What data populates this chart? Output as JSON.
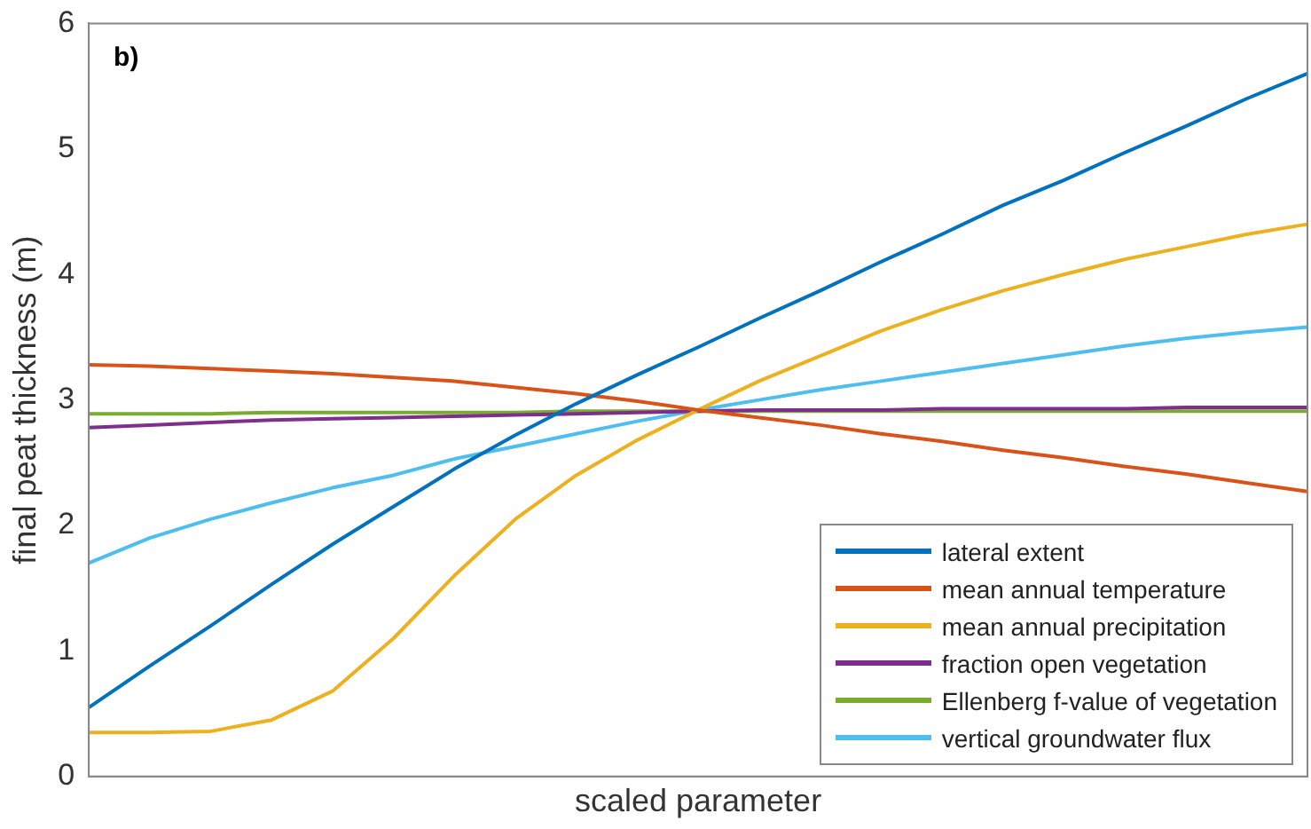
{
  "chart_data": {
    "type": "line",
    "xlabel": "scaled parameter",
    "ylabel": "final peat thickness (m)",
    "annotations": [
      "b)"
    ],
    "categories": [
      null,
      null,
      null,
      null,
      null,
      null,
      null,
      null,
      null,
      null,
      null,
      null,
      null,
      null,
      null,
      null,
      null,
      null,
      null,
      null,
      null
    ],
    "ylim": [
      0,
      6
    ],
    "yticks": [
      0,
      1,
      2,
      3,
      4,
      5,
      6
    ],
    "grid": false,
    "legend": "bottom right",
    "marker": "none",
    "line_style": "solid",
    "series": [
      {
        "name": "lateral extent",
        "color": "#0072bd",
        "values": [
          0.55,
          0.88,
          1.2,
          1.53,
          1.85,
          2.15,
          2.45,
          2.72,
          2.97,
          3.2,
          3.42,
          3.65,
          3.87,
          4.1,
          4.32,
          4.55,
          4.75,
          4.97,
          5.18,
          5.4,
          5.6
        ]
      },
      {
        "name": "mean annual temperature",
        "color": "#d95319",
        "values": [
          3.28,
          3.27,
          3.25,
          3.23,
          3.21,
          3.18,
          3.15,
          3.1,
          3.05,
          2.99,
          2.92,
          2.86,
          2.8,
          2.73,
          2.67,
          2.6,
          2.54,
          2.47,
          2.41,
          2.34,
          2.27
        ]
      },
      {
        "name": "mean annual precipitation",
        "color": "#edb120",
        "values": [
          0.35,
          0.35,
          0.36,
          0.45,
          0.68,
          1.1,
          1.6,
          2.05,
          2.4,
          2.68,
          2.92,
          3.15,
          3.35,
          3.55,
          3.72,
          3.87,
          4.0,
          4.12,
          4.22,
          4.32,
          4.4
        ]
      },
      {
        "name": "fraction open vegetation",
        "color": "#7e2f8e",
        "values": [
          2.78,
          2.8,
          2.82,
          2.84,
          2.85,
          2.86,
          2.87,
          2.88,
          2.89,
          2.9,
          2.91,
          2.92,
          2.92,
          2.92,
          2.93,
          2.93,
          2.93,
          2.93,
          2.94,
          2.94,
          2.94
        ]
      },
      {
        "name": "Ellenberg f-value of vegetation",
        "color": "#77ac30",
        "values": [
          2.89,
          2.89,
          2.89,
          2.9,
          2.9,
          2.9,
          2.9,
          2.9,
          2.91,
          2.91,
          2.91,
          2.91,
          2.91,
          2.91,
          2.91,
          2.91,
          2.91,
          2.91,
          2.91,
          2.91,
          2.91
        ]
      },
      {
        "name": "vertical groundwater flux",
        "color": "#4dbeee",
        "values": [
          1.7,
          1.9,
          2.05,
          2.18,
          2.3,
          2.4,
          2.53,
          2.63,
          2.73,
          2.83,
          2.92,
          3.0,
          3.08,
          3.15,
          3.22,
          3.29,
          3.36,
          3.43,
          3.49,
          3.54,
          3.58
        ]
      }
    ]
  }
}
